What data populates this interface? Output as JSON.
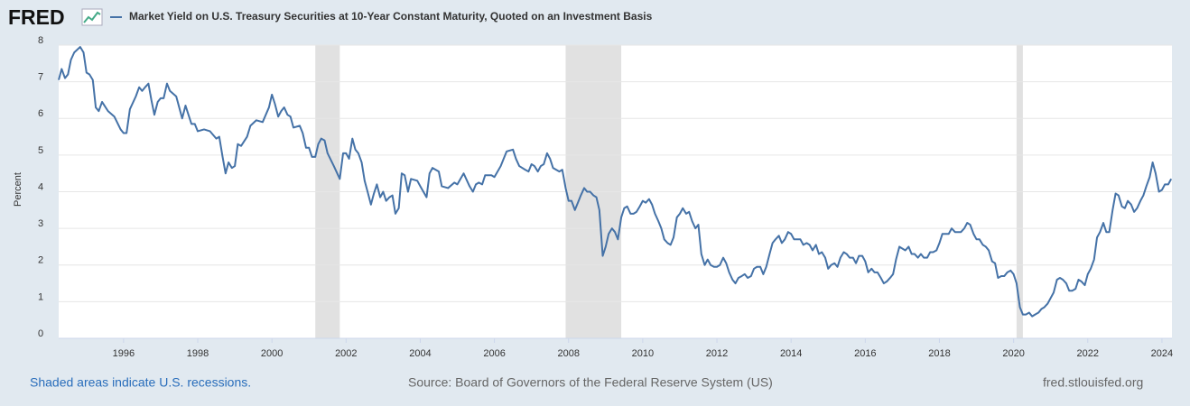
{
  "chart_data": {
    "type": "line",
    "logo": "FRED",
    "y_label": "Percent",
    "note": "Shaded areas indicate U.S. recessions.",
    "source": "Source: Board of Governors of the Federal Reserve System (US)",
    "site": "fred.stlouisfed.org",
    "xlim": [
      1994.25,
      2024.27
    ],
    "ylim": [
      0,
      8
    ],
    "xticks": [
      1996,
      1998,
      2000,
      2002,
      2004,
      2006,
      2008,
      2010,
      2012,
      2014,
      2016,
      2018,
      2020,
      2022,
      2024
    ],
    "yticks": [
      0,
      1,
      2,
      3,
      4,
      5,
      6,
      7,
      8
    ],
    "grid": true,
    "recession_color": "#e1e1e1",
    "recessions": [
      [
        2001.17,
        2001.83
      ],
      [
        2007.92,
        2009.42
      ],
      [
        2020.08,
        2020.25
      ]
    ],
    "x": [
      1994.25,
      1994.33,
      1994.42,
      1994.5,
      1994.58,
      1994.67,
      1994.83,
      1994.92,
      1995.0,
      1995.08,
      1995.17,
      1995.25,
      1995.33,
      1995.42,
      1995.58,
      1995.75,
      1995.92,
      1996.0,
      1996.08,
      1996.17,
      1996.33,
      1996.42,
      1996.5,
      1996.58,
      1996.67,
      1996.75,
      1996.83,
      1996.92,
      1997.0,
      1997.08,
      1997.17,
      1997.25,
      1997.42,
      1997.5,
      1997.58,
      1997.67,
      1997.75,
      1997.83,
      1997.92,
      1998.0,
      1998.17,
      1998.33,
      1998.5,
      1998.58,
      1998.67,
      1998.75,
      1998.83,
      1998.92,
      1999.0,
      1999.08,
      1999.17,
      1999.33,
      1999.42,
      1999.58,
      1999.75,
      1999.92,
      2000.0,
      2000.08,
      2000.17,
      2000.25,
      2000.33,
      2000.42,
      2000.5,
      2000.58,
      2000.75,
      2000.83,
      2000.92,
      2001.0,
      2001.08,
      2001.17,
      2001.25,
      2001.33,
      2001.42,
      2001.5,
      2001.67,
      2001.83,
      2001.92,
      2002.0,
      2002.08,
      2002.17,
      2002.25,
      2002.33,
      2002.42,
      2002.5,
      2002.58,
      2002.67,
      2002.75,
      2002.83,
      2002.92,
      2003.0,
      2003.08,
      2003.17,
      2003.25,
      2003.33,
      2003.42,
      2003.5,
      2003.58,
      2003.67,
      2003.75,
      2003.92,
      2004.0,
      2004.17,
      2004.25,
      2004.33,
      2004.5,
      2004.58,
      2004.75,
      2004.92,
      2005.0,
      2005.17,
      2005.33,
      2005.42,
      2005.5,
      2005.58,
      2005.67,
      2005.75,
      2005.92,
      2006.0,
      2006.17,
      2006.33,
      2006.5,
      2006.58,
      2006.67,
      2006.83,
      2006.92,
      2007.0,
      2007.08,
      2007.17,
      2007.25,
      2007.33,
      2007.42,
      2007.5,
      2007.58,
      2007.75,
      2007.83,
      2007.92,
      2008.0,
      2008.08,
      2008.17,
      2008.25,
      2008.33,
      2008.42,
      2008.5,
      2008.58,
      2008.67,
      2008.75,
      2008.83,
      2008.92,
      2009.0,
      2009.08,
      2009.17,
      2009.25,
      2009.33,
      2009.42,
      2009.5,
      2009.58,
      2009.67,
      2009.75,
      2009.83,
      2009.92,
      2010.0,
      2010.08,
      2010.17,
      2010.25,
      2010.33,
      2010.42,
      2010.5,
      2010.58,
      2010.67,
      2010.75,
      2010.83,
      2010.92,
      2011.0,
      2011.08,
      2011.17,
      2011.25,
      2011.33,
      2011.42,
      2011.5,
      2011.58,
      2011.67,
      2011.75,
      2011.83,
      2011.92,
      2012.0,
      2012.08,
      2012.17,
      2012.25,
      2012.33,
      2012.42,
      2012.5,
      2012.58,
      2012.67,
      2012.75,
      2012.83,
      2012.92,
      2013.0,
      2013.08,
      2013.17,
      2013.25,
      2013.33,
      2013.42,
      2013.5,
      2013.58,
      2013.67,
      2013.75,
      2013.83,
      2013.92,
      2014.0,
      2014.08,
      2014.17,
      2014.25,
      2014.33,
      2014.42,
      2014.5,
      2014.58,
      2014.67,
      2014.75,
      2014.83,
      2014.92,
      2015.0,
      2015.08,
      2015.17,
      2015.25,
      2015.33,
      2015.42,
      2015.5,
      2015.58,
      2015.67,
      2015.75,
      2015.83,
      2015.92,
      2016.0,
      2016.08,
      2016.17,
      2016.25,
      2016.33,
      2016.42,
      2016.5,
      2016.58,
      2016.67,
      2016.75,
      2016.83,
      2016.92,
      2017.0,
      2017.08,
      2017.17,
      2017.25,
      2017.33,
      2017.42,
      2017.5,
      2017.58,
      2017.67,
      2017.75,
      2017.83,
      2017.92,
      2018.0,
      2018.08,
      2018.17,
      2018.25,
      2018.33,
      2018.42,
      2018.5,
      2018.58,
      2018.67,
      2018.75,
      2018.83,
      2018.92,
      2019.0,
      2019.08,
      2019.17,
      2019.25,
      2019.33,
      2019.42,
      2019.5,
      2019.58,
      2019.67,
      2019.75,
      2019.83,
      2019.92,
      2020.0,
      2020.08,
      2020.17,
      2020.25,
      2020.33,
      2020.42,
      2020.5,
      2020.58,
      2020.67,
      2020.75,
      2020.83,
      2020.92,
      2021.0,
      2021.08,
      2021.17,
      2021.25,
      2021.33,
      2021.42,
      2021.5,
      2021.58,
      2021.67,
      2021.75,
      2021.83,
      2021.92,
      2022.0,
      2022.08,
      2022.17,
      2022.25,
      2022.33,
      2022.42,
      2022.5,
      2022.58,
      2022.67,
      2022.75,
      2022.83,
      2022.92,
      2023.0,
      2023.08,
      2023.17,
      2023.25,
      2023.33,
      2023.42,
      2023.5,
      2023.58,
      2023.67,
      2023.75,
      2023.83,
      2023.92,
      2024.0,
      2024.08,
      2024.17,
      2024.25
    ],
    "series": [
      {
        "name": "Market Yield on U.S. Treasury Securities at 10-Year Constant Maturity, Quoted on an Investment Basis",
        "color": "#4572a7",
        "values": [
          7.05,
          7.35,
          7.1,
          7.2,
          7.6,
          7.8,
          7.95,
          7.8,
          7.25,
          7.2,
          7.05,
          6.3,
          6.2,
          6.45,
          6.2,
          6.05,
          5.7,
          5.6,
          5.6,
          6.25,
          6.6,
          6.85,
          6.75,
          6.85,
          6.95,
          6.5,
          6.1,
          6.45,
          6.55,
          6.55,
          6.95,
          6.75,
          6.6,
          6.3,
          6.0,
          6.35,
          6.1,
          5.85,
          5.85,
          5.65,
          5.7,
          5.65,
          5.45,
          5.5,
          4.95,
          4.5,
          4.8,
          4.65,
          4.7,
          5.3,
          5.25,
          5.5,
          5.8,
          5.95,
          5.9,
          6.3,
          6.65,
          6.4,
          6.05,
          6.2,
          6.3,
          6.1,
          6.05,
          5.75,
          5.8,
          5.6,
          5.2,
          5.2,
          4.95,
          4.95,
          5.3,
          5.45,
          5.4,
          5.05,
          4.7,
          4.35,
          5.05,
          5.05,
          4.9,
          5.45,
          5.15,
          5.05,
          4.8,
          4.3,
          4.0,
          3.65,
          3.95,
          4.2,
          3.85,
          4.0,
          3.75,
          3.85,
          3.9,
          3.4,
          3.55,
          4.5,
          4.45,
          4.0,
          4.35,
          4.3,
          4.15,
          3.85,
          4.5,
          4.65,
          4.55,
          4.15,
          4.1,
          4.25,
          4.2,
          4.5,
          4.15,
          4.0,
          4.2,
          4.25,
          4.2,
          4.45,
          4.45,
          4.4,
          4.7,
          5.1,
          5.15,
          4.9,
          4.7,
          4.6,
          4.55,
          4.75,
          4.7,
          4.55,
          4.7,
          4.75,
          5.05,
          4.9,
          4.65,
          4.55,
          4.6,
          4.1,
          3.75,
          3.75,
          3.5,
          3.7,
          3.9,
          4.1,
          4.0,
          4.0,
          3.9,
          3.85,
          3.5,
          2.25,
          2.5,
          2.85,
          3.0,
          2.9,
          2.7,
          3.3,
          3.55,
          3.6,
          3.4,
          3.4,
          3.45,
          3.6,
          3.75,
          3.7,
          3.8,
          3.65,
          3.4,
          3.2,
          3.0,
          2.7,
          2.6,
          2.55,
          2.75,
          3.3,
          3.4,
          3.55,
          3.4,
          3.45,
          3.2,
          3.0,
          3.1,
          2.3,
          2.0,
          2.15,
          2.0,
          1.95,
          1.95,
          2.0,
          2.2,
          2.05,
          1.8,
          1.6,
          1.5,
          1.65,
          1.7,
          1.75,
          1.65,
          1.7,
          1.9,
          1.95,
          1.95,
          1.75,
          1.95,
          2.3,
          2.6,
          2.7,
          2.8,
          2.6,
          2.7,
          2.9,
          2.85,
          2.7,
          2.7,
          2.7,
          2.55,
          2.6,
          2.55,
          2.4,
          2.55,
          2.3,
          2.35,
          2.2,
          1.9,
          2.0,
          2.05,
          1.95,
          2.2,
          2.35,
          2.3,
          2.2,
          2.2,
          2.05,
          2.25,
          2.25,
          2.1,
          1.8,
          1.9,
          1.8,
          1.8,
          1.65,
          1.5,
          1.55,
          1.65,
          1.75,
          2.15,
          2.5,
          2.45,
          2.4,
          2.5,
          2.3,
          2.3,
          2.2,
          2.3,
          2.2,
          2.2,
          2.35,
          2.35,
          2.4,
          2.6,
          2.85,
          2.85,
          2.85,
          3.0,
          2.9,
          2.9,
          2.9,
          3.0,
          3.15,
          3.1,
          2.85,
          2.7,
          2.7,
          2.55,
          2.5,
          2.4,
          2.1,
          2.05,
          1.65,
          1.7,
          1.7,
          1.8,
          1.85,
          1.75,
          1.5,
          0.85,
          0.65,
          0.65,
          0.7,
          0.6,
          0.65,
          0.7,
          0.8,
          0.85,
          0.95,
          1.1,
          1.25,
          1.6,
          1.65,
          1.6,
          1.5,
          1.3,
          1.3,
          1.35,
          1.6,
          1.55,
          1.45,
          1.75,
          1.9,
          2.15,
          2.75,
          2.9,
          3.15,
          2.9,
          2.9,
          3.5,
          3.95,
          3.9,
          3.6,
          3.55,
          3.75,
          3.65,
          3.45,
          3.55,
          3.75,
          3.9,
          4.15,
          4.4,
          4.8,
          4.5,
          4.0,
          4.05,
          4.2,
          4.2,
          4.35
        ]
      }
    ]
  }
}
